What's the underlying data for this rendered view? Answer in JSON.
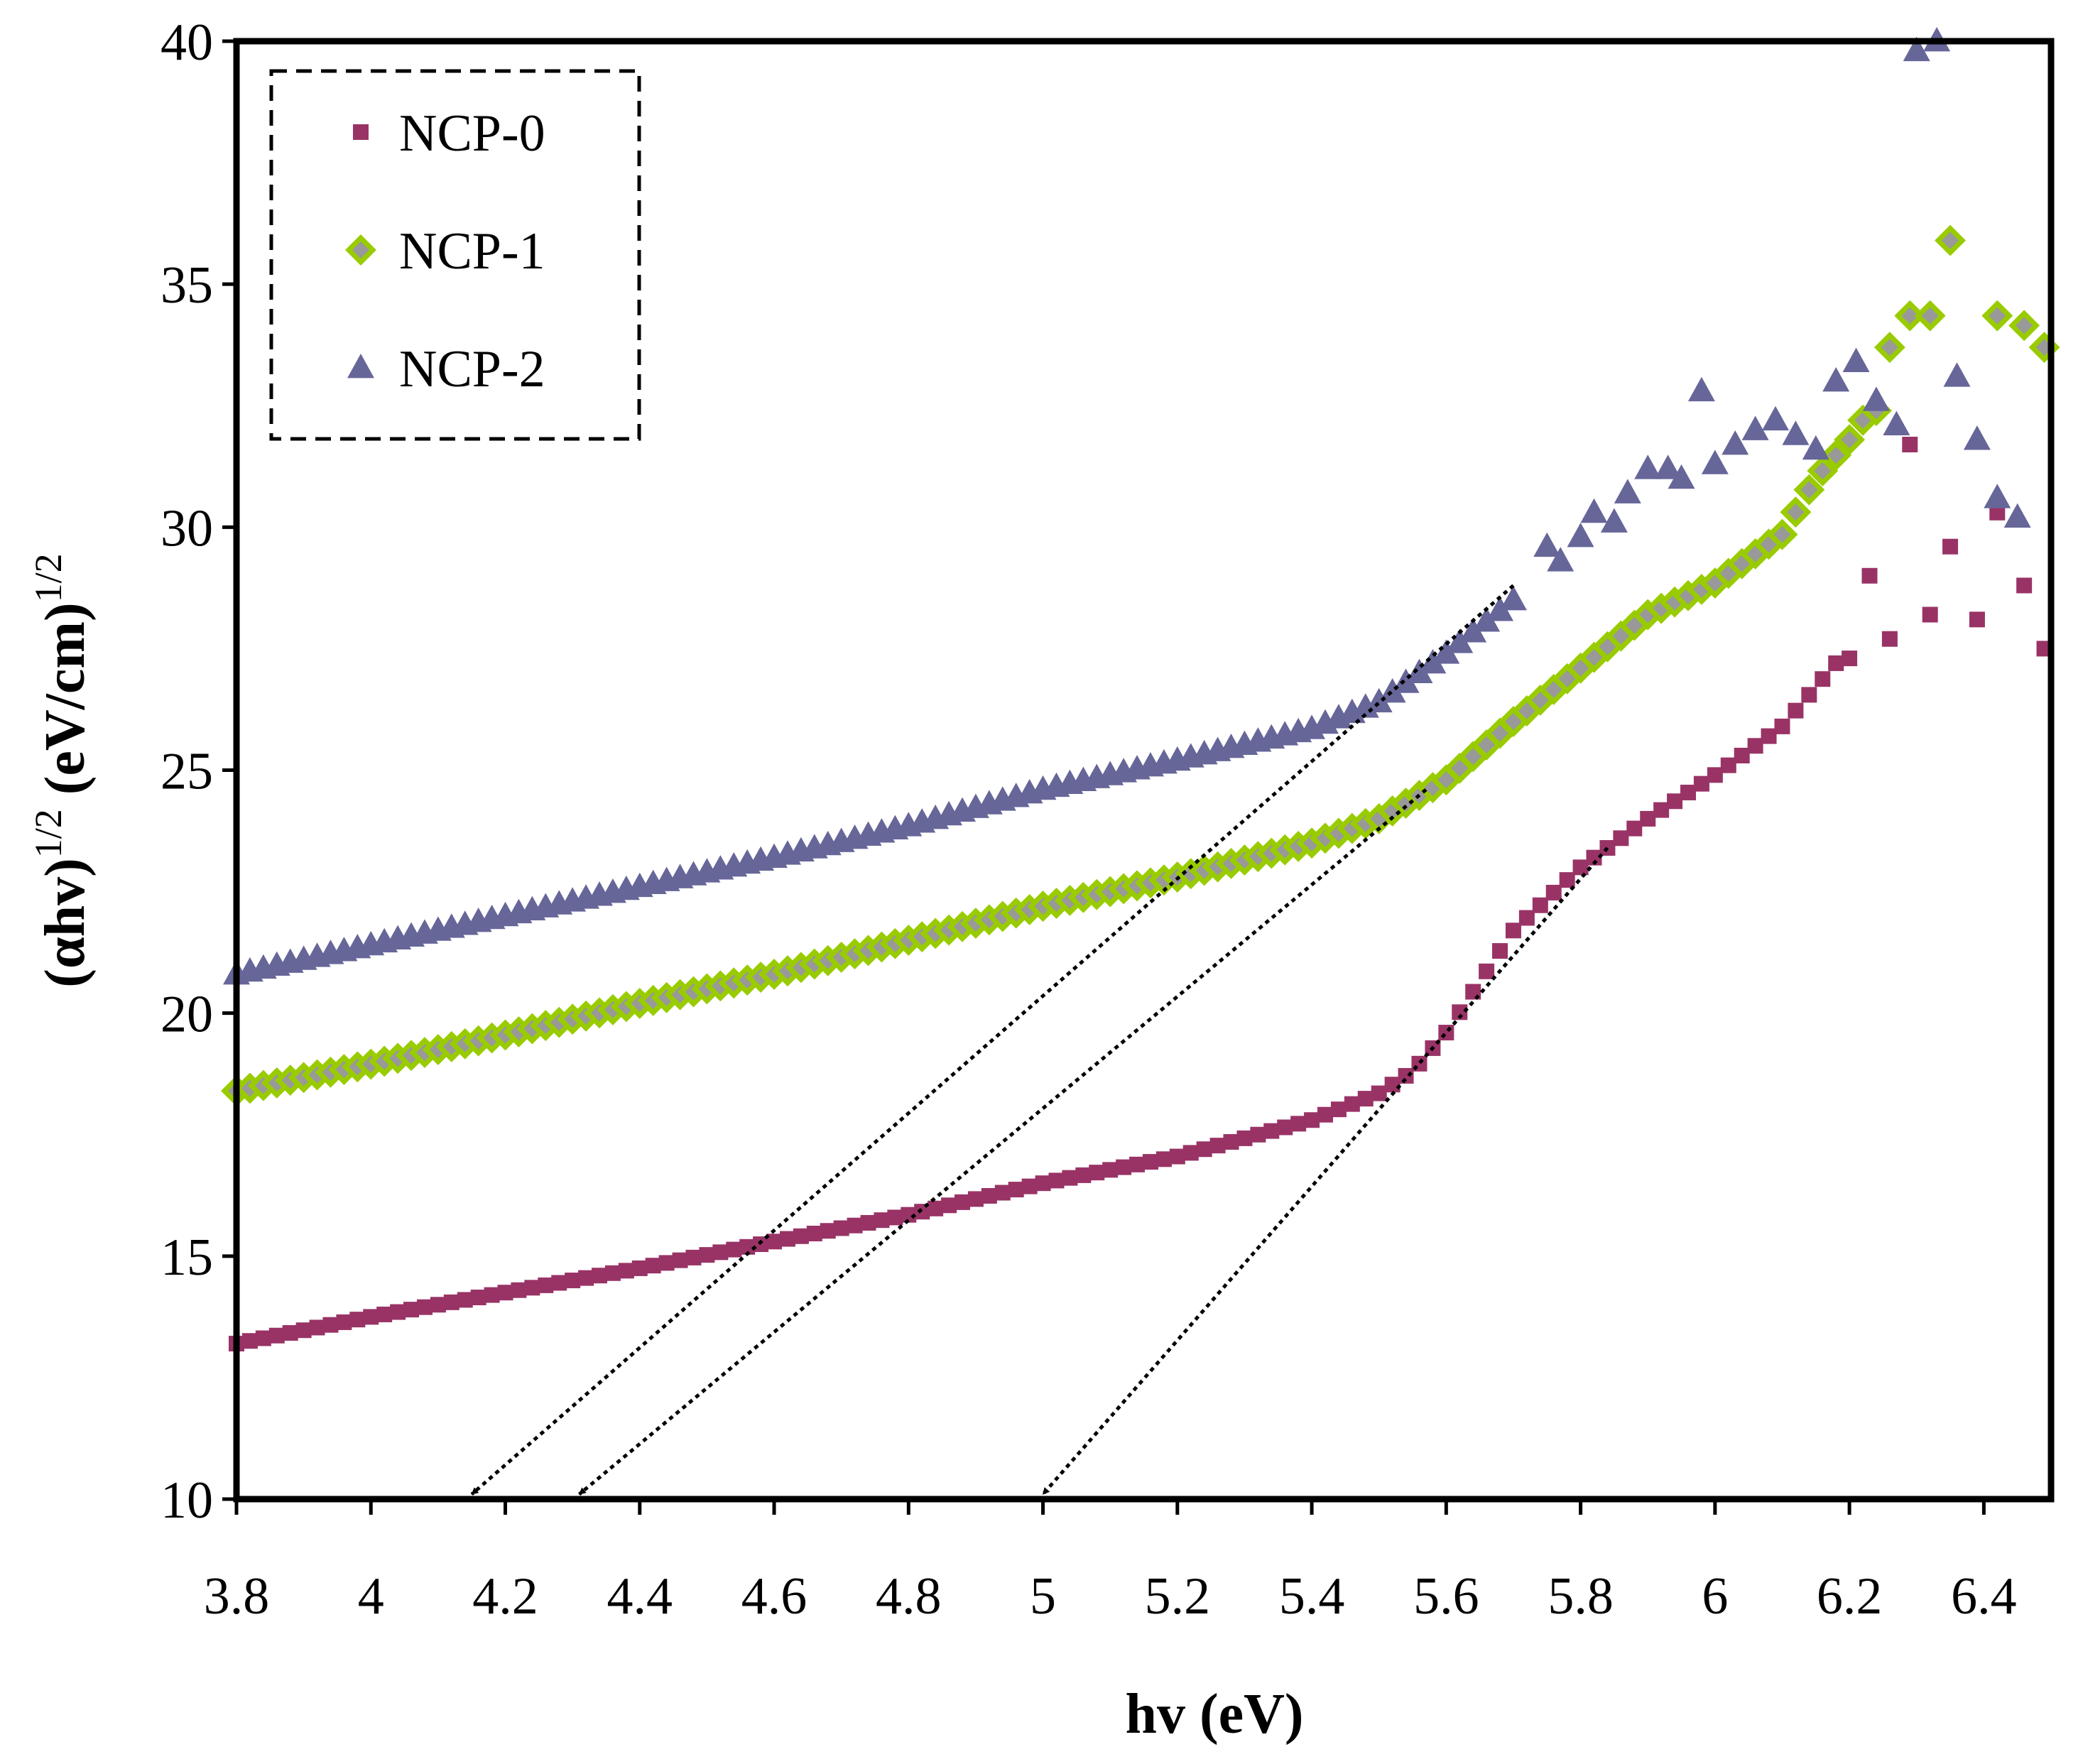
{
  "chart_data": {
    "type": "scatter",
    "xlabel": "hv (eV)",
    "ylabel_main": "(αhv)",
    "ylabel_sup1": "1/2",
    "ylabel_unit": " (eV/cm)",
    "ylabel_sup2": "1/2",
    "xlim": [
      3.8,
      6.5
    ],
    "ylim": [
      10,
      40
    ],
    "x_ticks": [
      {
        "v": 3.8,
        "label": "3.8"
      },
      {
        "v": 4.0,
        "label": "4"
      },
      {
        "v": 4.2,
        "label": "4.2"
      },
      {
        "v": 4.4,
        "label": "4.4"
      },
      {
        "v": 4.6,
        "label": "4.6"
      },
      {
        "v": 4.8,
        "label": "4.8"
      },
      {
        "v": 5.0,
        "label": "5"
      },
      {
        "v": 5.2,
        "label": "5.2"
      },
      {
        "v": 5.4,
        "label": "5.4"
      },
      {
        "v": 5.6,
        "label": "5.6"
      },
      {
        "v": 5.8,
        "label": "5.8"
      },
      {
        "v": 6.0,
        "label": "6"
      },
      {
        "v": 6.2,
        "label": "6.2"
      },
      {
        "v": 6.4,
        "label": "6.4"
      }
    ],
    "y_ticks": [
      {
        "v": 10,
        "label": "10"
      },
      {
        "v": 15,
        "label": "15"
      },
      {
        "v": 20,
        "label": "20"
      },
      {
        "v": 25,
        "label": "25"
      },
      {
        "v": 30,
        "label": "30"
      },
      {
        "v": 35,
        "label": "35"
      },
      {
        "v": 40,
        "label": "40"
      }
    ],
    "grid": false,
    "legend_position": "top-left",
    "series": [
      {
        "name": "NCP-0",
        "marker": "square",
        "color": "#993366",
        "curve": [
          [
            3.8,
            13.2
          ],
          [
            4.0,
            13.75
          ],
          [
            4.2,
            14.25
          ],
          [
            4.4,
            14.75
          ],
          [
            4.6,
            15.3
          ],
          [
            4.8,
            15.85
          ],
          [
            5.0,
            16.5
          ],
          [
            5.2,
            17.05
          ],
          [
            5.4,
            17.8
          ],
          [
            5.5,
            18.35
          ],
          [
            5.55,
            18.8
          ],
          [
            5.6,
            19.6
          ],
          [
            5.7,
            21.7
          ],
          [
            5.8,
            23.0
          ],
          [
            5.9,
            24.0
          ],
          [
            6.0,
            24.9
          ],
          [
            6.1,
            25.9
          ],
          [
            6.18,
            27.2
          ]
        ],
        "step": 0.02,
        "extra_points": [
          [
            6.2,
            27.3
          ],
          [
            6.23,
            29.0
          ],
          [
            6.26,
            27.7
          ],
          [
            6.29,
            31.7
          ],
          [
            6.32,
            28.2
          ],
          [
            6.35,
            29.6
          ],
          [
            6.39,
            28.1
          ],
          [
            6.42,
            30.3
          ],
          [
            6.46,
            28.8
          ],
          [
            6.49,
            27.5
          ]
        ]
      },
      {
        "name": "NCP-1",
        "marker": "diamond",
        "color": "#99CC00",
        "inner_color": "#999999",
        "curve": [
          [
            3.8,
            18.4
          ],
          [
            4.0,
            18.95
          ],
          [
            4.2,
            19.55
          ],
          [
            4.4,
            20.2
          ],
          [
            4.6,
            20.8
          ],
          [
            4.8,
            21.5
          ],
          [
            5.0,
            22.2
          ],
          [
            5.2,
            22.8
          ],
          [
            5.4,
            23.5
          ],
          [
            5.5,
            24.0
          ],
          [
            5.6,
            24.8
          ],
          [
            5.7,
            26.0
          ],
          [
            5.8,
            27.1
          ],
          [
            5.9,
            28.2
          ],
          [
            6.0,
            28.85
          ],
          [
            6.1,
            29.85
          ],
          [
            6.15,
            31.0
          ],
          [
            6.2,
            31.8
          ],
          [
            6.23,
            32.4
          ]
        ],
        "step": 0.02,
        "extra_points": [
          [
            6.26,
            33.7
          ],
          [
            6.29,
            34.35
          ],
          [
            6.32,
            34.35
          ],
          [
            6.35,
            35.9
          ],
          [
            6.42,
            34.35
          ],
          [
            6.46,
            34.15
          ],
          [
            6.49,
            33.7
          ]
        ]
      },
      {
        "name": "NCP-2",
        "marker": "triangle",
        "color": "#666699",
        "curve": [
          [
            3.8,
            20.8
          ],
          [
            4.0,
            21.4
          ],
          [
            4.2,
            22.0
          ],
          [
            4.4,
            22.6
          ],
          [
            4.6,
            23.2
          ],
          [
            4.8,
            23.85
          ],
          [
            5.0,
            24.6
          ],
          [
            5.2,
            25.2
          ],
          [
            5.4,
            25.85
          ],
          [
            5.5,
            26.4
          ],
          [
            5.6,
            27.4
          ],
          [
            5.7,
            28.5
          ]
        ],
        "step": 0.02,
        "extra_points": [
          [
            5.75,
            29.6
          ],
          [
            5.77,
            29.3
          ],
          [
            5.8,
            29.8
          ],
          [
            5.82,
            30.3
          ],
          [
            5.85,
            30.1
          ],
          [
            5.87,
            30.7
          ],
          [
            5.9,
            31.2
          ],
          [
            5.93,
            31.2
          ],
          [
            5.95,
            31.0
          ],
          [
            5.98,
            32.8
          ],
          [
            6.0,
            31.3
          ],
          [
            6.03,
            31.7
          ],
          [
            6.06,
            32.0
          ],
          [
            6.09,
            32.2
          ],
          [
            6.12,
            31.9
          ],
          [
            6.15,
            31.6
          ],
          [
            6.18,
            33.0
          ],
          [
            6.21,
            33.4
          ],
          [
            6.24,
            32.6
          ],
          [
            6.27,
            32.1
          ],
          [
            6.3,
            39.8
          ],
          [
            6.33,
            40.0
          ],
          [
            6.36,
            33.1
          ],
          [
            6.39,
            31.8
          ],
          [
            6.42,
            30.6
          ],
          [
            6.45,
            30.2
          ]
        ]
      }
    ],
    "extrapolation_lines": [
      {
        "series": "NCP-2",
        "from": [
          5.7,
          28.8
        ],
        "to": [
          4.15,
          10.1
        ]
      },
      {
        "series": "NCP-1",
        "from": [
          5.57,
          24.6
        ],
        "to": [
          4.31,
          10.1
        ]
      },
      {
        "series": "NCP-0",
        "from": [
          5.84,
          23.4
        ],
        "to": [
          5.0,
          10.1
        ]
      }
    ]
  }
}
